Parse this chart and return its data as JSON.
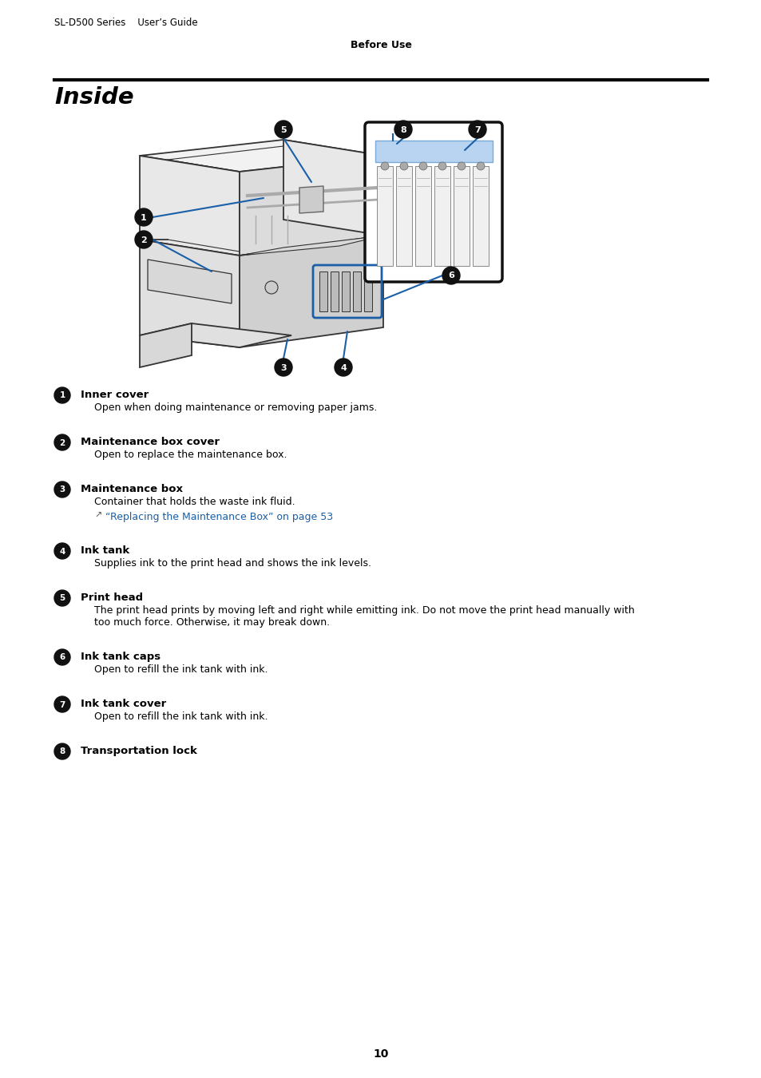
{
  "header_left": "SL-D500 Series    User’s Guide",
  "header_center": "Before Use",
  "section_title": "Inside",
  "background_color": "#ffffff",
  "text_color": "#000000",
  "blue_color": "#1a5fa8",
  "page_number": "10",
  "items": [
    {
      "num": "1",
      "title": "Inner cover",
      "desc": "Open when doing maintenance or removing paper jams.",
      "link": null,
      "extra_line": false
    },
    {
      "num": "2",
      "title": "Maintenance box cover",
      "desc": "Open to replace the maintenance box.",
      "link": null,
      "extra_line": false
    },
    {
      "num": "3",
      "title": "Maintenance box",
      "desc": "Container that holds the waste ink fluid.",
      "link": "“Replacing the Maintenance Box” on page 53",
      "extra_line": false
    },
    {
      "num": "4",
      "title": "Ink tank",
      "desc": "Supplies ink to the print head and shows the ink levels.",
      "link": null,
      "extra_line": false
    },
    {
      "num": "5",
      "title": "Print head",
      "desc": "The print head prints by moving left and right while emitting ink. Do not move the print head manually with too much force. Otherwise, it may break down.",
      "link": null,
      "extra_line": false
    },
    {
      "num": "6",
      "title": "Ink tank caps",
      "desc": "Open to refill the ink tank with ink.",
      "link": null,
      "extra_line": false
    },
    {
      "num": "7",
      "title": "Ink tank cover",
      "desc": "Open to refill the ink tank with ink.",
      "link": null,
      "extra_line": false
    },
    {
      "num": "8",
      "title": "Transportation lock",
      "desc": "",
      "link": null,
      "extra_line": false
    }
  ]
}
